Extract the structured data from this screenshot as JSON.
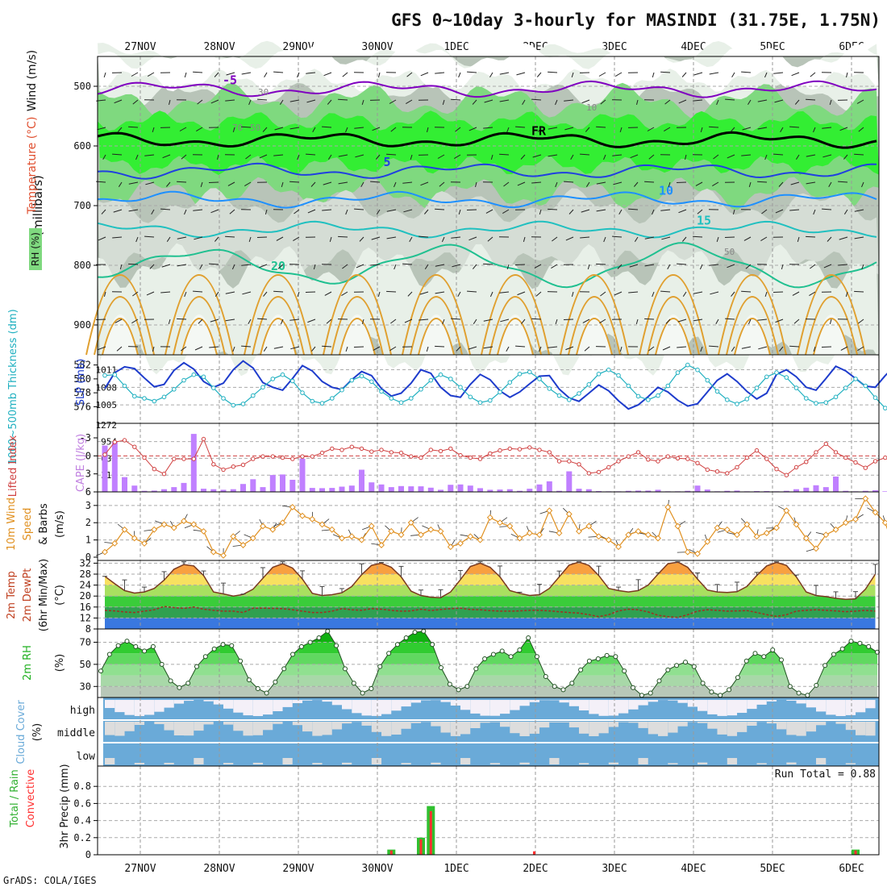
{
  "title": "GFS 0~10day 3-hourly for MASINDI (31.75E, 1.75N)",
  "footer": "GrADS: COLA/IGES",
  "colors": {
    "rh_dark": "#b8c4b8",
    "rh_mid": "#d5ddd5",
    "rh_light": "#e8f0e8",
    "rh_green": "#7fd97f",
    "rh_bright": "#33ee33",
    "temp_purple": "#8000c0",
    "temp_blue1": "#2040e0",
    "temp_blue2": "#1e90ff",
    "temp_teal1": "#20c0c0",
    "temp_teal2": "#20c090",
    "temp_orange": "#e0a030",
    "freeze": "#000000",
    "slp": "#1e3ccc",
    "thickness": "#20b0c0",
    "lifted": "#d04040",
    "cape": "#c080ff",
    "wind": "#e09020",
    "cloud": "#6aaad8",
    "cloud_bg": "#dddddd",
    "rain_total": "#30c030",
    "rain_conv": "#ff3030"
  },
  "dates": [
    "27NOV",
    "28NOV",
    "29NOV",
    "30NOV",
    "1DEC",
    "2DEC",
    "3DEC",
    "4DEC",
    "5DEC",
    "6DEC"
  ],
  "chart_data": [
    {
      "type": "heatmap",
      "title": "Wind (m/s) / Temperature (°C) / RH (%)",
      "ylabel": "(millibars)",
      "legend_labels": [
        "Wind (m/s)",
        "Temperature (°C)",
        "RH (%)"
      ],
      "y_ticks": [
        500,
        600,
        700,
        800,
        900
      ],
      "ylim": [
        950,
        450
      ],
      "temperature_contours": [
        {
          "label": "-5",
          "level_mb": 505
        },
        {
          "label": "FR",
          "level_mb": 590
        },
        {
          "label": "5",
          "level_mb": 642
        },
        {
          "label": "10",
          "level_mb": 690
        },
        {
          "label": "15",
          "level_mb": 740
        },
        {
          "label": "20",
          "level_mb": 800
        }
      ],
      "rh_labels": [
        "70",
        "50",
        "30",
        "10",
        "50"
      ]
    },
    {
      "type": "line",
      "title": "SLP (mb) / 1000-500mb Thickness (dm)",
      "ylabel": "SLP (mb)",
      "ylabel2": "1000~500mb Thickness (dm)",
      "left_ticks": [
        582,
        580,
        578,
        576
      ],
      "right_ticks": [
        1011,
        1008,
        1005
      ],
      "series": [
        {
          "name": "SLP",
          "axis": "right",
          "values": [
            1007.8,
            1010.5,
            1011.5,
            1011.2,
            1009.6,
            1008.1,
            1008.5,
            1010.9,
            1012.2,
            1011.1,
            1009.0,
            1008.0,
            1008.7,
            1011.0,
            1012.5,
            1011.3,
            1008.8,
            1008.0,
            1007.5,
            1009.5,
            1011.7,
            1010.8,
            1009.0,
            1008.0,
            1007.6,
            1009.3,
            1010.7,
            1010.0,
            1007.8,
            1006.5,
            1007.0,
            1008.7,
            1011.0,
            1010.4,
            1008.0,
            1006.6,
            1006.3,
            1008.5,
            1010.2,
            1009.3,
            1007.4,
            1006.3,
            1007.2,
            1008.6,
            1009.9,
            1010.0,
            1007.7,
            1006.2,
            1005.6,
            1007.0,
            1008.4,
            1007.4,
            1005.7,
            1004.3,
            1005.0,
            1006.4,
            1008.0,
            1007.2,
            1005.8,
            1004.8,
            1005.2,
            1007.2,
            1009.2,
            1010.3,
            1009.0,
            1007.3,
            1006.0,
            1007.0,
            1010.2,
            1011.0,
            1009.8,
            1008.0,
            1007.5,
            1009.5,
            1011.6,
            1010.8,
            1009.5,
            1008.2,
            1008.0,
            1010.0,
            1011.7
          ]
        },
        {
          "name": "1000-500mb Thickness",
          "axis": "left",
          "values": [
            580.5,
            580.6,
            579.0,
            577.5,
            577.2,
            576.8,
            577.4,
            578.5,
            579.8,
            580.6,
            580.3,
            578.7,
            577.2,
            576.2,
            576.4,
            577.6,
            578.8,
            580.0,
            580.6,
            579.7,
            578.0,
            576.8,
            576.5,
            577.2,
            578.4,
            579.8,
            580.4,
            579.6,
            578.2,
            577.2,
            576.6,
            577.2,
            578.5,
            579.8,
            580.6,
            580.0,
            578.8,
            577.4,
            576.6,
            576.9,
            578.1,
            579.5,
            580.7,
            581.0,
            580.0,
            578.6,
            577.6,
            577.0,
            577.9,
            579.2,
            580.7,
            581.3,
            580.5,
            579.0,
            577.5,
            577.0,
            577.6,
            579.0,
            580.9,
            582.0,
            581.3,
            579.8,
            578.2,
            577.0,
            576.4,
            577.1,
            578.7,
            580.3,
            580.9,
            580.2,
            578.7,
            577.2,
            576.5,
            576.6,
            577.4,
            578.7,
            580.0,
            579.0,
            577.3,
            575.8,
            575.5
          ]
        }
      ]
    },
    {
      "type": "bar",
      "title": "Lifted Index / CAPE (J/kg)",
      "ylabel": "Lifted Index",
      "ylabel2": "CAPE (J/kg)",
      "left_ticks": [
        -3,
        0,
        3,
        6
      ],
      "right_ticks": [
        1272,
        954,
        636,
        318
      ],
      "series": [
        {
          "name": "CAPE",
          "axis": "right",
          "values": [
            880,
            950,
            280,
            120,
            20,
            25,
            50,
            90,
            170,
            1100,
            60,
            50,
            40,
            50,
            150,
            240,
            90,
            320,
            330,
            230,
            630,
            75,
            70,
            75,
            100,
            120,
            420,
            180,
            140,
            90,
            110,
            105,
            105,
            80,
            40,
            135,
            140,
            120,
            70,
            40,
            45,
            50,
            20,
            60,
            140,
            200,
            20,
            390,
            60,
            50,
            15,
            10,
            10,
            20,
            25,
            25,
            40,
            10,
            10,
            20,
            120,
            45,
            10,
            20,
            25,
            10,
            15,
            15,
            10,
            20,
            50,
            80,
            125,
            90,
            290,
            20,
            10,
            20,
            30,
            10,
            20
          ]
        },
        {
          "name": "Lifted Index",
          "axis": "left",
          "values": [
            -0.2,
            -2.3,
            -2.6,
            -1.5,
            0.3,
            2.2,
            3.0,
            0.5,
            0.5,
            0.5,
            -2.8,
            1.4,
            2.3,
            1.8,
            1.5,
            0.5,
            0.1,
            0.1,
            0.3,
            0.5,
            0.1,
            0.1,
            -0.5,
            -1.2,
            -1.0,
            -1.5,
            -1.2,
            -0.7,
            -1.0,
            -0.6,
            -0.5,
            0.1,
            0.3,
            -1.0,
            -0.8,
            -1.2,
            -0.1,
            0.3,
            0.5,
            -0.4,
            -0.9,
            -1.2,
            -1.1,
            -1.4,
            -1.0,
            -0.6,
            0.9,
            0.9,
            1.4,
            2.9,
            2.7,
            1.9,
            0.9,
            0.1,
            -0.6,
            0.6,
            0.9,
            0.1,
            0.4,
            0.5,
            1.2,
            2.3,
            2.6,
            2.9,
            1.9,
            0.3,
            -0.9,
            0.5,
            2.2,
            3.2,
            1.9,
            1.0,
            -0.6,
            -2.0,
            -0.6,
            0.3,
            1.1,
            2.0,
            0.9,
            0.3,
            -0.1
          ]
        }
      ]
    },
    {
      "type": "line",
      "title": "10m Wind Speed & Barbs (m/s)",
      "ylabel": "10m Wind Speed & Barbs (m/s)",
      "left_ticks": [
        0,
        1,
        2,
        3
      ],
      "ylim": [
        0,
        3.6
      ],
      "series": [
        {
          "name": "10m Wind Speed",
          "values": [
            0.3,
            0.8,
            1.6,
            1.1,
            0.8,
            1.6,
            1.9,
            1.7,
            2.1,
            1.9,
            1.5,
            0.3,
            0.1,
            1.2,
            0.7,
            1.1,
            1.8,
            1.6,
            2.0,
            2.9,
            2.4,
            2.2,
            1.9,
            1.6,
            1.1,
            1.2,
            1.0,
            1.8,
            0.7,
            1.5,
            1.3,
            2.0,
            1.3,
            1.6,
            1.5,
            0.6,
            0.8,
            1.2,
            1.0,
            2.3,
            2.0,
            1.8,
            1.1,
            1.4,
            1.3,
            2.7,
            1.4,
            2.5,
            1.5,
            1.8,
            1.2,
            1.0,
            0.6,
            1.3,
            1.5,
            1.3,
            1.1,
            2.9,
            1.8,
            0.3,
            0.2,
            0.9,
            1.7,
            1.6,
            1.3,
            1.9,
            1.2,
            1.4,
            1.7,
            2.7,
            1.9,
            1.1,
            0.5,
            1.3,
            1.6,
            2.0,
            2.2,
            3.4,
            2.6,
            2.0,
            0.3,
            1.6
          ]
        }
      ]
    },
    {
      "type": "area",
      "title": "2m Temp / 2m DewPt (6hr Min/Max) (°C)",
      "ylabel": "2m Temp 2m DewPt (6hr Min/Max) (°C)",
      "left_ticks": [
        8,
        12,
        16,
        20,
        24,
        28,
        32
      ],
      "ylim": [
        8,
        33
      ],
      "series": [
        {
          "name": "2m Temp",
          "values": [
            27.2,
            24.5,
            22.0,
            21.1,
            21.5,
            22.8,
            25.8,
            29.8,
            31.5,
            31.0,
            27.5,
            21.5,
            20.8,
            20.0,
            20.6,
            22.5,
            26.5,
            30.5,
            31.8,
            30.2,
            26.2,
            21.0,
            20.2,
            20.5,
            21.2,
            23.5,
            27.8,
            31.2,
            32.0,
            30.5,
            27.0,
            21.8,
            20.2,
            19.6,
            19.4,
            21.5,
            26.0,
            30.8,
            32.0,
            30.5,
            27.0,
            22.0,
            21.0,
            20.2,
            20.5,
            22.8,
            27.0,
            31.3,
            32.4,
            31.2,
            27.5,
            22.8,
            22.0,
            21.5,
            22.0,
            24.0,
            28.0,
            31.8,
            32.4,
            30.5,
            26.2,
            22.2,
            21.5,
            21.3,
            21.6,
            23.5,
            27.5,
            31.0,
            32.3,
            31.2,
            27.0,
            21.5,
            20.2,
            19.8,
            19.2,
            18.8,
            19.0,
            22.5,
            28.0
          ]
        },
        {
          "name": "2m DewPt",
          "values": [
            14.8,
            14.6,
            14.2,
            14.0,
            14.5,
            15.0,
            16.2,
            15.8,
            15.5,
            16.0,
            15.2,
            14.8,
            14.5,
            14.5,
            14.0,
            15.6,
            15.6,
            15.5,
            15.4,
            15.0,
            14.5,
            14.0,
            14.0,
            14.5,
            15.4,
            15.0,
            14.8,
            15.4,
            15.2,
            14.8,
            14.5,
            14.6,
            15.2,
            14.7,
            15.1,
            15.4,
            15.6,
            15.1,
            15.0,
            14.7,
            14.5,
            14.5,
            14.6,
            14.8,
            14.8,
            14.6,
            14.3,
            14.0,
            13.8,
            13.2,
            12.5,
            13.2,
            14.6,
            15.2,
            15.0,
            14.2,
            13.0,
            12.5,
            12.2,
            13.2,
            14.5,
            15.0,
            14.8,
            14.5,
            14.6,
            14.7,
            14.0,
            13.2,
            12.6,
            13.2,
            14.5,
            14.8,
            15.0,
            14.8,
            14.6,
            14.3,
            14.5,
            14.8,
            14.5
          ]
        }
      ]
    },
    {
      "type": "area",
      "title": "2m RH (%)",
      "ylabel": "2m RH (%)",
      "left_ticks": [
        30,
        50,
        70
      ],
      "ylim": [
        20,
        82
      ],
      "series": [
        {
          "name": "2m RH",
          "values": [
            44,
            59,
            67,
            71,
            66,
            62,
            66,
            50,
            35,
            29,
            33,
            48,
            57,
            64,
            68,
            67,
            53,
            36,
            28,
            24,
            34,
            46,
            59,
            66,
            70,
            74,
            80,
            67,
            46,
            33,
            24,
            28,
            48,
            60,
            68,
            74,
            79,
            80,
            68,
            47,
            32,
            27,
            30,
            46,
            55,
            59,
            62,
            57,
            63,
            74,
            57,
            39,
            30,
            27,
            33,
            45,
            53,
            55,
            58,
            57,
            44,
            29,
            22,
            24,
            35,
            45,
            49,
            52,
            48,
            33,
            25,
            22,
            27,
            38,
            53,
            60,
            57,
            63,
            54,
            30,
            24,
            22,
            31,
            49,
            59,
            64,
            71,
            69,
            66,
            61
          ]
        }
      ]
    },
    {
      "type": "bar",
      "title": "Cloud Cover (%)",
      "ylabel": "Cloud Cover (%)",
      "categories": [
        "high",
        "middle",
        "low"
      ]
    },
    {
      "type": "bar",
      "title": "3hr Precip (mm)",
      "ylabel": "3hr Precip (mm)",
      "legend_labels": [
        "Total / Rain",
        "Convective"
      ],
      "annotation": "Run Total = 0.88",
      "left_ticks": [
        0,
        0.2,
        0.4,
        0.6,
        0.8
      ],
      "ylim": [
        0,
        1.0
      ],
      "series": [
        {
          "name": "Total / Rain",
          "values": [
            0.06,
            0.2,
            0.57,
            0.06
          ]
        },
        {
          "name": "Convective",
          "values": [
            0.05,
            0.18,
            0.51,
            0.05
          ]
        }
      ],
      "x_index": [
        29,
        32,
        33,
        76
      ]
    }
  ]
}
